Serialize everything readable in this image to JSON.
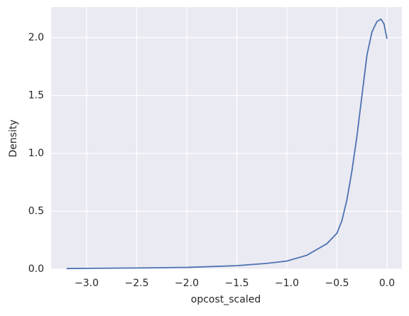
{
  "chart_data": {
    "type": "line",
    "xlabel": "opcost_scaled",
    "ylabel": "Density",
    "x": [
      -3.2,
      -2.5,
      -2.0,
      -1.5,
      -1.2,
      -1.0,
      -0.8,
      -0.6,
      -0.5,
      -0.45,
      -0.4,
      -0.35,
      -0.3,
      -0.25,
      -0.2,
      -0.15,
      -0.1,
      -0.06,
      -0.03,
      0.0
    ],
    "series": [
      {
        "color": "#4c72b0",
        "values": [
          0.005,
          0.01,
          0.015,
          0.03,
          0.05,
          0.07,
          0.12,
          0.22,
          0.31,
          0.42,
          0.6,
          0.85,
          1.15,
          1.5,
          1.85,
          2.05,
          2.14,
          2.16,
          2.12,
          1.99
        ]
      }
    ],
    "xlim": [
      -3.355,
      0.149
    ],
    "ylim": [
      0,
      2.264
    ],
    "xticks": [
      {
        "value": -3.0,
        "label": "−3.0"
      },
      {
        "value": -2.5,
        "label": "−2.5"
      },
      {
        "value": -2.0,
        "label": "−2.0"
      },
      {
        "value": -1.5,
        "label": "−1.5"
      },
      {
        "value": -1.0,
        "label": "−1.0"
      },
      {
        "value": -0.5,
        "label": "−0.5"
      },
      {
        "value": 0.0,
        "label": "0.0"
      }
    ],
    "yticks": [
      {
        "value": 0,
        "label": "0.0"
      },
      0.5,
      {
        "value": 1,
        "label": "1.0"
      },
      1.5,
      {
        "value": 2,
        "label": "2.0"
      }
    ],
    "grid": true
  }
}
